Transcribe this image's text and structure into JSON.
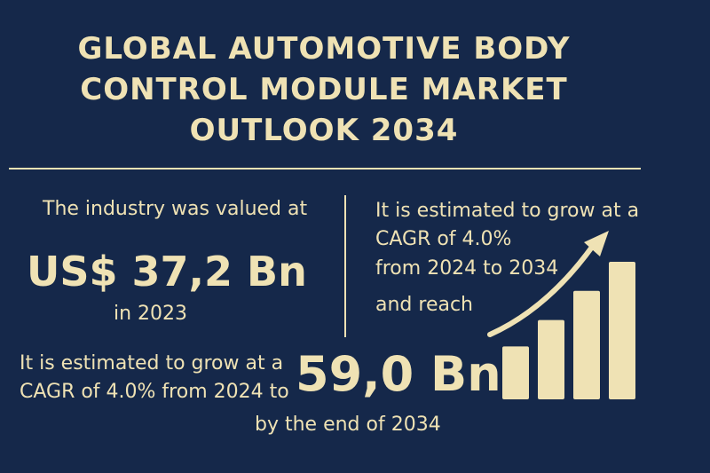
{
  "title": {
    "line1": "GLOBAL AUTOMOTIVE BODY",
    "line2": "CONTROL MODULE MARKET",
    "line3": "OUTLOOK 2034"
  },
  "left_panel": {
    "intro": "The industry was valued at",
    "value": "US$ 37,2 Bn",
    "year": "in 2023"
  },
  "right_panel": {
    "line1": "It is estimated to grow at a",
    "line2": "CAGR of 4.0%",
    "line3": "from 2024 to 2034",
    "line4": "and reach"
  },
  "bottom": {
    "line1": "It is estimated to grow at a",
    "line2": "CAGR of 4.0% from 2024 to",
    "value": "59,0 Bn",
    "end": "by the end of 2034"
  },
  "colors": {
    "background": "#15284a",
    "accent": "#efe2b4"
  },
  "chart_data": {
    "type": "bar",
    "values": [
      1,
      1.5,
      2.05,
      2.6
    ],
    "trend_arrow": true
  }
}
